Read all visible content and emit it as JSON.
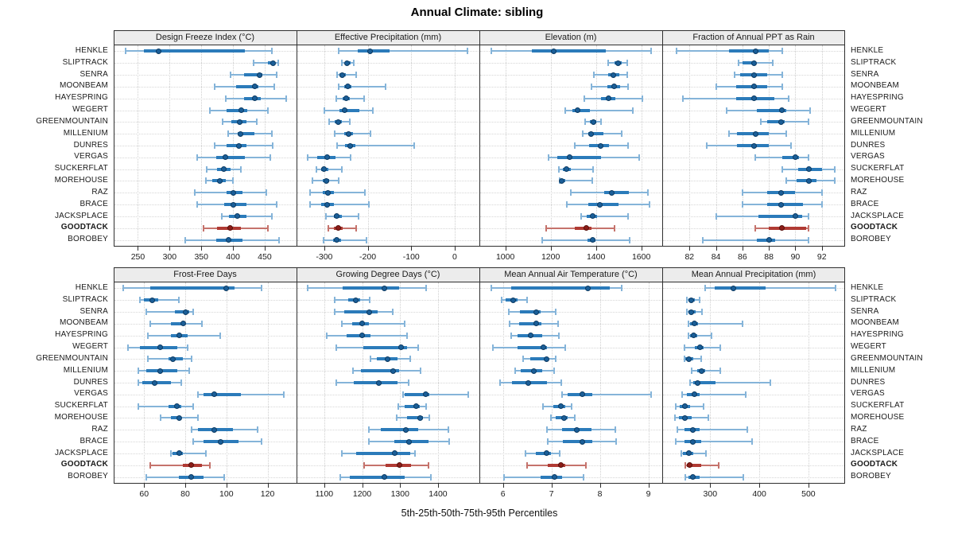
{
  "title": "Annual Climate: sibling",
  "caption": "5th-25th-50th-75th-95th Percentiles",
  "chart_data": {
    "type": "dotplot",
    "orientation": "horizontal",
    "percentiles": [
      5,
      25,
      50,
      75,
      95
    ],
    "grid": "dotted",
    "legend_position": "none",
    "stations": [
      "HENKLE",
      "SLIPTRACK",
      "SENRA",
      "MOONBEAM",
      "HAYESPRING",
      "WEGERT",
      "GREENMOUNTAIN",
      "MILLENIUM",
      "DUNRES",
      "VERGAS",
      "SUCKERFLAT",
      "MOREHOUSE",
      "RAZ",
      "BRACE",
      "JACKSPLACE",
      "GOODTACK",
      "BOROBEY"
    ],
    "highlight_station": "GOODTACK",
    "colors": {
      "normal": {
        "whisker": "#85b4d9",
        "box": "#2b7bba",
        "dot": "#1a5e98",
        "dot_edge": "#0d3a61"
      },
      "highlight": {
        "whisker": "#c5736c",
        "box": "#b03a33",
        "dot": "#8c1d18",
        "dot_edge": "#57100c"
      },
      "strip_bg": "#ececec",
      "frame": "#2f2f2f",
      "grid": "#cfcfcf"
    },
    "panels": [
      {
        "title": "Design Freeze Index (°C)",
        "xlim": [
          213,
          499
        ],
        "ticks": [
          250,
          300,
          350,
          400,
          450
        ],
        "values": [
          [
            230,
            259,
            282,
            419,
            461
          ],
          [
            432,
            455,
            463,
            467,
            471
          ],
          [
            396,
            417,
            442,
            446,
            469
          ],
          [
            371,
            405,
            434,
            440,
            465
          ],
          [
            388,
            417,
            434,
            444,
            484
          ],
          [
            363,
            390,
            413,
            423,
            455
          ],
          [
            384,
            398,
            411,
            421,
            438
          ],
          [
            392,
            407,
            412,
            434,
            461
          ],
          [
            371,
            390,
            409,
            421,
            463
          ],
          [
            344,
            373,
            388,
            419,
            459
          ],
          [
            359,
            375,
            386,
            396,
            413
          ],
          [
            357,
            367,
            379,
            388,
            400
          ],
          [
            340,
            390,
            400,
            415,
            453
          ],
          [
            344,
            386,
            400,
            421,
            469
          ],
          [
            382,
            394,
            407,
            421,
            461
          ],
          [
            353,
            375,
            396,
            413,
            455
          ],
          [
            325,
            373,
            393,
            415,
            473
          ]
        ]
      },
      {
        "title": "Effective Precipitation (mm)",
        "xlim": [
          -362,
          55
        ],
        "ticks": [
          -300,
          -200,
          -100,
          0
        ],
        "values": [
          [
            -266,
            -223,
            -194,
            -150,
            30
          ],
          [
            -260,
            -252,
            -247,
            -240,
            -232
          ],
          [
            -271,
            -265,
            -259,
            -250,
            -226
          ],
          [
            -266,
            -254,
            -246,
            -238,
            -159
          ],
          [
            -272,
            -257,
            -249,
            -241,
            -209
          ],
          [
            -300,
            -265,
            -253,
            -220,
            -189
          ],
          [
            -289,
            -276,
            -268,
            -259,
            -242
          ],
          [
            -276,
            -254,
            -244,
            -234,
            -194
          ],
          [
            -270,
            -252,
            -241,
            -229,
            -93
          ],
          [
            -339,
            -316,
            -294,
            -274,
            -240
          ],
          [
            -318,
            -308,
            -300,
            -290,
            -260
          ],
          [
            -327,
            -304,
            -296,
            -288,
            -266
          ],
          [
            -333,
            -304,
            -291,
            -278,
            -207
          ],
          [
            -333,
            -307,
            -293,
            -278,
            -197
          ],
          [
            -296,
            -278,
            -271,
            -260,
            -221
          ],
          [
            -290,
            -278,
            -268,
            -258,
            -226
          ],
          [
            -302,
            -280,
            -272,
            -262,
            -202
          ]
        ]
      },
      {
        "title": "Elevation (m)",
        "xlim": [
          889,
          1689
        ],
        "ticks": [
          1000,
          1200,
          1400,
          1600
        ],
        "values": [
          [
            939,
            1116,
            1215,
            1444,
            1643
          ],
          [
            1454,
            1481,
            1498,
            1513,
            1537
          ],
          [
            1392,
            1454,
            1475,
            1504,
            1539
          ],
          [
            1379,
            1452,
            1479,
            1508,
            1541
          ],
          [
            1348,
            1423,
            1456,
            1487,
            1605
          ],
          [
            1264,
            1296,
            1319,
            1374,
            1562
          ],
          [
            1351,
            1374,
            1388,
            1402,
            1421
          ],
          [
            1340,
            1365,
            1379,
            1432,
            1512
          ],
          [
            1305,
            1371,
            1421,
            1458,
            1541
          ],
          [
            1189,
            1228,
            1284,
            1421,
            1591
          ],
          [
            1238,
            1255,
            1270,
            1290,
            1386
          ],
          [
            1240,
            1242,
            1250,
            1263,
            1383
          ],
          [
            1290,
            1435,
            1469,
            1545,
            1629
          ],
          [
            1272,
            1365,
            1417,
            1498,
            1637
          ],
          [
            1336,
            1359,
            1386,
            1405,
            1541
          ],
          [
            1180,
            1305,
            1359,
            1382,
            1483
          ],
          [
            1162,
            1363,
            1386,
            1397,
            1548
          ]
        ]
      },
      {
        "title": "Fraction of Annual PPT as Rain",
        "xlim": [
          80,
          93.7
        ],
        "ticks": [
          82,
          84,
          86,
          88,
          90,
          92
        ],
        "values": [
          [
            81.0,
            85.0,
            87.0,
            88.0,
            89.0
          ],
          [
            85.7,
            86.0,
            86.9,
            87.0,
            88.3
          ],
          [
            85.4,
            85.8,
            86.9,
            87.9,
            89.0
          ],
          [
            84.0,
            85.5,
            86.9,
            87.9,
            89.0
          ],
          [
            81.5,
            85.5,
            86.9,
            88.4,
            89.5
          ],
          [
            84.8,
            87.1,
            89.0,
            89.3,
            91.1
          ],
          [
            87.4,
            87.9,
            88.9,
            89.2,
            91.0
          ],
          [
            85.0,
            85.6,
            87.0,
            88.0,
            89.3
          ],
          [
            83.3,
            85.6,
            86.9,
            88.0,
            89.7
          ],
          [
            87.0,
            89.0,
            90.0,
            90.3,
            91.0
          ],
          [
            89.0,
            90.2,
            91.0,
            92.0,
            93.0
          ],
          [
            89.3,
            90.1,
            91.0,
            91.6,
            93.0
          ],
          [
            86.0,
            87.9,
            88.9,
            90.0,
            92.0
          ],
          [
            86.0,
            87.9,
            88.9,
            90.6,
            92.0
          ],
          [
            84.0,
            87.2,
            90.0,
            90.5,
            91.0
          ],
          [
            87.0,
            88.0,
            89.0,
            90.8,
            91.0
          ],
          [
            83.0,
            87.1,
            88.0,
            88.5,
            91.0
          ]
        ]
      },
      {
        "title": "Frost-Free Days",
        "xlim": [
          45.6,
          133.7
        ],
        "ticks": [
          60,
          80,
          100,
          120
        ],
        "values": [
          [
            50,
            63,
            100,
            104,
            117
          ],
          [
            58,
            60,
            64,
            67,
            77
          ],
          [
            61,
            75,
            80,
            82,
            84
          ],
          [
            63,
            73,
            79,
            80,
            88
          ],
          [
            62,
            73,
            77,
            81,
            97
          ],
          [
            52,
            58,
            68,
            76,
            81
          ],
          [
            62,
            72,
            74,
            79,
            83
          ],
          [
            57,
            61,
            68,
            76,
            82
          ],
          [
            57,
            59,
            65,
            73,
            78
          ],
          [
            86,
            89,
            94,
            107,
            128
          ],
          [
            57,
            72,
            76,
            78,
            84
          ],
          [
            68,
            73,
            77,
            78,
            86
          ],
          [
            83,
            86,
            94,
            103,
            115
          ],
          [
            84,
            89,
            97,
            106,
            117
          ],
          [
            73,
            74,
            77,
            79,
            90
          ],
          [
            63,
            79,
            83,
            88,
            92
          ],
          [
            61,
            77,
            83,
            89,
            99
          ]
        ]
      },
      {
        "title": "Growing Degree Days (°C)",
        "xlim": [
          1029,
          1507
        ],
        "ticks": [
          1100,
          1200,
          1300,
          1400
        ],
        "values": [
          [
            1056,
            1149,
            1259,
            1298,
            1368
          ],
          [
            1128,
            1164,
            1183,
            1194,
            1220
          ],
          [
            1128,
            1152,
            1218,
            1240,
            1280
          ],
          [
            1146,
            1173,
            1199,
            1218,
            1312
          ],
          [
            1107,
            1158,
            1199,
            1222,
            1319
          ],
          [
            1132,
            1204,
            1303,
            1319,
            1347
          ],
          [
            1222,
            1239,
            1266,
            1294,
            1326
          ],
          [
            1176,
            1197,
            1282,
            1298,
            1354
          ],
          [
            1132,
            1178,
            1243,
            1294,
            1322
          ],
          [
            1308,
            1312,
            1368,
            1376,
            1480
          ],
          [
            1296,
            1313,
            1343,
            1352,
            1368
          ],
          [
            1291,
            1319,
            1352,
            1361,
            1377
          ],
          [
            1218,
            1250,
            1315,
            1347,
            1428
          ],
          [
            1218,
            1284,
            1324,
            1374,
            1430
          ],
          [
            1146,
            1185,
            1286,
            1326,
            1340
          ],
          [
            1206,
            1261,
            1298,
            1329,
            1374
          ],
          [
            1142,
            1167,
            1259,
            1312,
            1381
          ]
        ]
      },
      {
        "title": "Mean Annual Air Temperature (°C)",
        "xlim": [
          5.53,
          9.27
        ],
        "ticks": [
          6,
          7,
          8,
          9
        ],
        "values": [
          [
            5.76,
            6.17,
            7.76,
            8.21,
            8.45
          ],
          [
            5.98,
            6.06,
            6.21,
            6.3,
            6.5
          ],
          [
            6.12,
            6.35,
            6.68,
            6.78,
            7.09
          ],
          [
            6.14,
            6.34,
            6.68,
            6.79,
            7.13
          ],
          [
            6.17,
            6.3,
            6.57,
            6.81,
            7.15
          ],
          [
            5.79,
            6.3,
            6.84,
            6.9,
            7.28
          ],
          [
            6.41,
            6.57,
            6.9,
            6.93,
            7.09
          ],
          [
            6.25,
            6.36,
            6.64,
            6.81,
            7.06
          ],
          [
            5.94,
            6.19,
            6.52,
            6.91,
            7.2
          ],
          [
            7.22,
            7.33,
            7.63,
            7.85,
            9.06
          ],
          [
            6.82,
            7.04,
            7.2,
            7.28,
            7.42
          ],
          [
            6.99,
            7.09,
            7.26,
            7.33,
            7.49
          ],
          [
            6.9,
            7.22,
            7.53,
            7.82,
            8.32
          ],
          [
            6.92,
            7.24,
            7.63,
            7.85,
            8.34
          ],
          [
            6.47,
            6.68,
            6.9,
            6.99,
            7.17
          ],
          [
            6.5,
            6.93,
            7.19,
            7.28,
            7.71
          ],
          [
            6.03,
            6.77,
            7.06,
            7.22,
            7.66
          ]
        ]
      },
      {
        "title": "Mean Annual Precipitation (mm)",
        "xlim": [
          204,
          573
        ],
        "ticks": [
          300,
          400,
          500
        ],
        "values": [
          [
            289,
            309,
            347,
            412,
            555
          ],
          [
            252,
            256,
            261,
            268,
            279
          ],
          [
            252,
            256,
            261,
            270,
            284
          ],
          [
            256,
            259,
            268,
            275,
            366
          ],
          [
            256,
            259,
            266,
            273,
            302
          ],
          [
            247,
            268,
            279,
            286,
            320
          ],
          [
            247,
            250,
            257,
            265,
            281
          ],
          [
            263,
            273,
            282,
            289,
            321
          ],
          [
            259,
            265,
            275,
            311,
            423
          ],
          [
            243,
            252,
            268,
            279,
            372
          ],
          [
            230,
            238,
            248,
            259,
            287
          ],
          [
            229,
            236,
            249,
            263,
            296
          ],
          [
            233,
            247,
            265,
            279,
            375
          ],
          [
            230,
            247,
            265,
            282,
            386
          ],
          [
            241,
            245,
            256,
            265,
            291
          ],
          [
            249,
            252,
            259,
            282,
            318
          ],
          [
            249,
            256,
            265,
            279,
            368
          ]
        ]
      }
    ]
  }
}
